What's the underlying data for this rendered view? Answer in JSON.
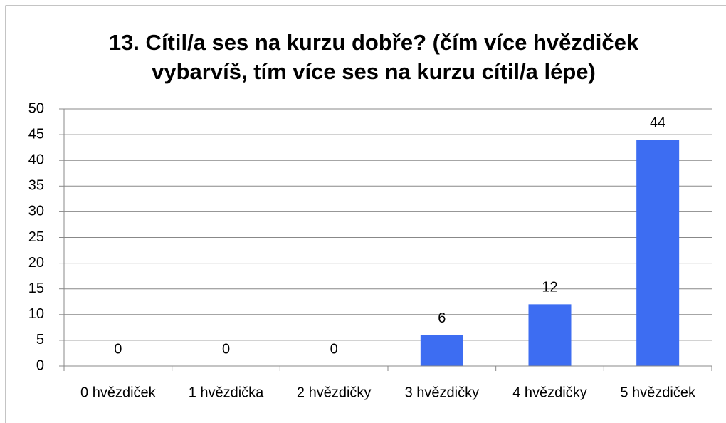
{
  "chart_data": {
    "type": "bar",
    "title": [
      "13. Cítil/a ses na kurzu dobře? (čím více hvězdiček",
      "vybarvíš, tím více ses na kurzu cítil/a lépe)"
    ],
    "categories": [
      "0 hvězdiček",
      "1 hvězdička",
      "2 hvězdičky",
      "3 hvězdičky",
      "4 hvězdičky",
      "5 hvězdiček"
    ],
    "values": [
      0,
      0,
      0,
      6,
      12,
      44
    ],
    "color": "#3d6df2",
    "ylim": [
      0,
      50
    ],
    "yticks": [
      0,
      5,
      10,
      15,
      20,
      25,
      30,
      35,
      40,
      45,
      50
    ],
    "grid": true
  }
}
